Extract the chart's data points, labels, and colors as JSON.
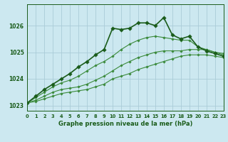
{
  "title": "Graphe pression niveau de la mer (hPa)",
  "background_color": "#cce8f0",
  "grid_color": "#aaccd8",
  "text_color": "#1a5c1a",
  "line_color_main": "#1a5c1a",
  "line_color_sec": "#3a8a3a",
  "xlim": [
    0,
    23
  ],
  "ylim": [
    1022.8,
    1026.8
  ],
  "yticks": [
    1023,
    1024,
    1025,
    1026
  ],
  "xticks": [
    0,
    1,
    2,
    3,
    4,
    5,
    6,
    7,
    8,
    9,
    10,
    11,
    12,
    13,
    14,
    15,
    16,
    17,
    18,
    19,
    20,
    21,
    22,
    23
  ],
  "series": [
    {
      "x": [
        0,
        1,
        2,
        3,
        4,
        5,
        6,
        7,
        8,
        9,
        10,
        11,
        12,
        13,
        14,
        15,
        16,
        17,
        18,
        19,
        20,
        21,
        22,
        23
      ],
      "y": [
        1023.1,
        1023.15,
        1023.25,
        1023.35,
        1023.45,
        1023.5,
        1023.55,
        1023.6,
        1023.7,
        1023.8,
        1024.0,
        1024.1,
        1024.2,
        1024.35,
        1024.45,
        1024.55,
        1024.65,
        1024.75,
        1024.85,
        1024.9,
        1024.9,
        1024.9,
        1024.85,
        1024.8
      ],
      "lw": 0.8,
      "ls": "-",
      "marker": "D",
      "ms": 1.8,
      "alpha": 1.0
    },
    {
      "x": [
        0,
        1,
        2,
        3,
        4,
        5,
        6,
        7,
        8,
        9,
        10,
        11,
        12,
        13,
        14,
        15,
        16,
        17,
        18,
        19,
        20,
        21,
        22,
        23
      ],
      "y": [
        1023.1,
        1023.2,
        1023.35,
        1023.5,
        1023.6,
        1023.65,
        1023.7,
        1023.8,
        1023.95,
        1024.1,
        1024.3,
        1024.5,
        1024.65,
        1024.8,
        1024.9,
        1025.0,
        1025.05,
        1025.05,
        1025.05,
        1025.1,
        1025.1,
        1025.1,
        1025.0,
        1024.95
      ],
      "lw": 0.8,
      "ls": "-",
      "marker": "D",
      "ms": 1.8,
      "alpha": 1.0
    },
    {
      "x": [
        0,
        1,
        2,
        3,
        4,
        5,
        6,
        7,
        8,
        9,
        10,
        11,
        12,
        13,
        14,
        15,
        16,
        17,
        18,
        19,
        20,
        21,
        22,
        23
      ],
      "y": [
        1023.1,
        1023.3,
        1023.5,
        1023.7,
        1023.85,
        1023.95,
        1024.1,
        1024.3,
        1024.5,
        1024.65,
        1024.85,
        1025.1,
        1025.3,
        1025.45,
        1025.55,
        1025.6,
        1025.55,
        1025.5,
        1025.45,
        1025.45,
        1025.2,
        1025.1,
        1025.0,
        1024.9
      ],
      "lw": 0.8,
      "ls": "-",
      "marker": "D",
      "ms": 1.8,
      "alpha": 1.0
    },
    {
      "x": [
        0,
        1,
        2,
        3,
        4,
        5,
        6,
        7,
        8,
        9,
        10,
        11,
        12,
        13,
        14,
        15,
        16,
        17,
        18,
        19,
        20,
        21,
        22,
        23
      ],
      "y": [
        1023.1,
        1023.35,
        1023.6,
        1023.8,
        1024.0,
        1024.2,
        1024.45,
        1024.65,
        1024.9,
        1025.1,
        1025.9,
        1025.85,
        1025.9,
        1026.1,
        1026.1,
        1026.0,
        1026.3,
        1025.65,
        1025.5,
        1025.6,
        1025.2,
        1025.05,
        1024.95,
        1024.85
      ],
      "lw": 1.2,
      "ls": "-",
      "marker": "D",
      "ms": 2.8,
      "alpha": 1.0
    }
  ]
}
